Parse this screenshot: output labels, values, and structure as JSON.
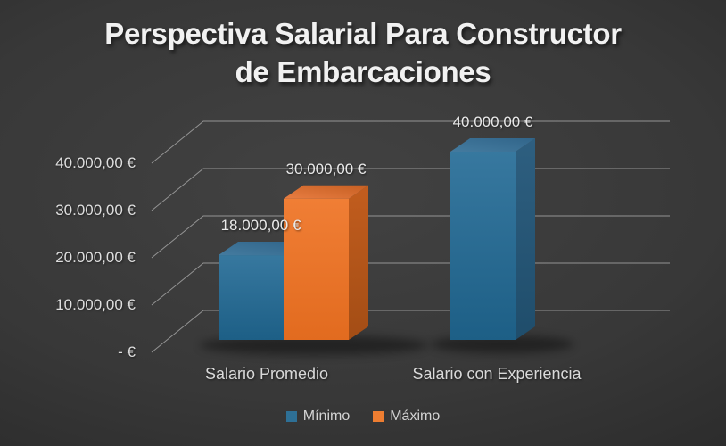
{
  "title": {
    "line1": "Perspectiva Salarial Para Constructor",
    "line2": "de Embarcaciones"
  },
  "chart_data": {
    "type": "bar",
    "projection": "3d",
    "title": "Perspectiva Salarial Para Constructor de Embarcaciones",
    "categories": [
      "Salario Promedio",
      "Salario con Experiencia"
    ],
    "series": [
      {
        "name": "Mínimo",
        "color": "#2e7096",
        "points": [
          {
            "value": 18000,
            "label": "18.000,00 €"
          },
          {
            "value": 40000,
            "label": "40.000,00 €"
          }
        ],
        "faces": {
          "front": [
            "#37789f",
            "#1d5f86"
          ],
          "top": [
            "#447b9f",
            "#31658a"
          ],
          "side": [
            "#2e5f80",
            "#1f4d6b"
          ]
        }
      },
      {
        "name": "Máximo",
        "color": "#ed7d31",
        "points": [
          {
            "value": 30000,
            "label": "30.000,00 €"
          },
          {
            "value": null,
            "label": null
          }
        ],
        "faces": {
          "front": [
            "#f07e35",
            "#e26b1f"
          ],
          "top": [
            "#e87d42",
            "#c65f22"
          ],
          "side": [
            "#c25d1e",
            "#a34d15"
          ]
        }
      }
    ],
    "yaxis": {
      "min": 0,
      "max": 40000,
      "step": 10000,
      "ticks": [
        40000,
        30000,
        20000,
        10000,
        0
      ],
      "tick_labels": [
        "40.000,00 €",
        "30.000,00 €",
        "20.000,00 €",
        "10.000,00 €",
        "- €"
      ]
    },
    "legend_position": "bottom",
    "grid": true
  },
  "theme": {
    "gridline": "#a3a3a3",
    "shadow": "#000000",
    "text": "#e6e6e6"
  }
}
